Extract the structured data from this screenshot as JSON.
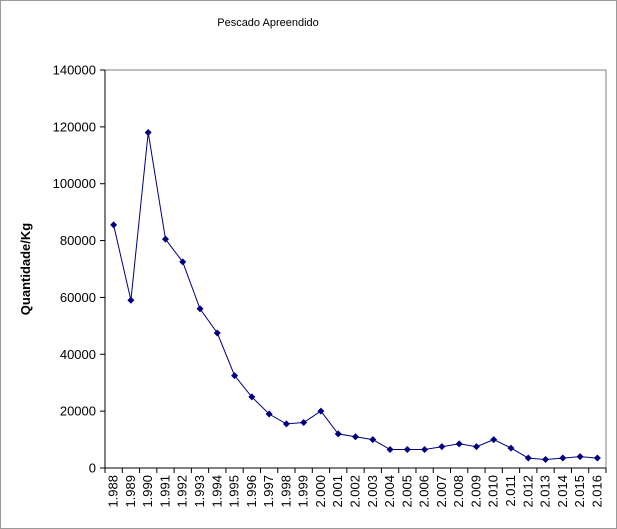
{
  "chart_data": {
    "type": "line",
    "title": "Pescado Apreendido",
    "xlabel": "",
    "ylabel": "Quantidade/Kg",
    "ylim": [
      0,
      140000
    ],
    "y_ticks": [
      "0",
      "20000",
      "40000",
      "60000",
      "80000",
      "100000",
      "120000",
      "140000"
    ],
    "categories": [
      "1.988",
      "1.989",
      "1.990",
      "1.991",
      "1.992",
      "1.993",
      "1.994",
      "1.995",
      "1.996",
      "1.997",
      "1.998",
      "1.999",
      "2.000",
      "2.001",
      "2.002",
      "2.003",
      "2.004",
      "2.005",
      "2.006",
      "2.007",
      "2.008",
      "2.009",
      "2.010",
      "2.011",
      "2.012",
      "2.013",
      "2.014",
      "2.015",
      "2.016"
    ],
    "series": [
      {
        "values": [
          85500,
          59000,
          118000,
          80500,
          72500,
          56000,
          47500,
          32500,
          25000,
          19000,
          15500,
          16000,
          20000,
          12000,
          11000,
          10000,
          6500,
          6500,
          6500,
          7500,
          8500,
          7500,
          10000,
          7000,
          3500,
          3000,
          3500,
          4000,
          3500
        ],
        "color": "#000080"
      }
    ],
    "grid": false,
    "legend": "none"
  }
}
